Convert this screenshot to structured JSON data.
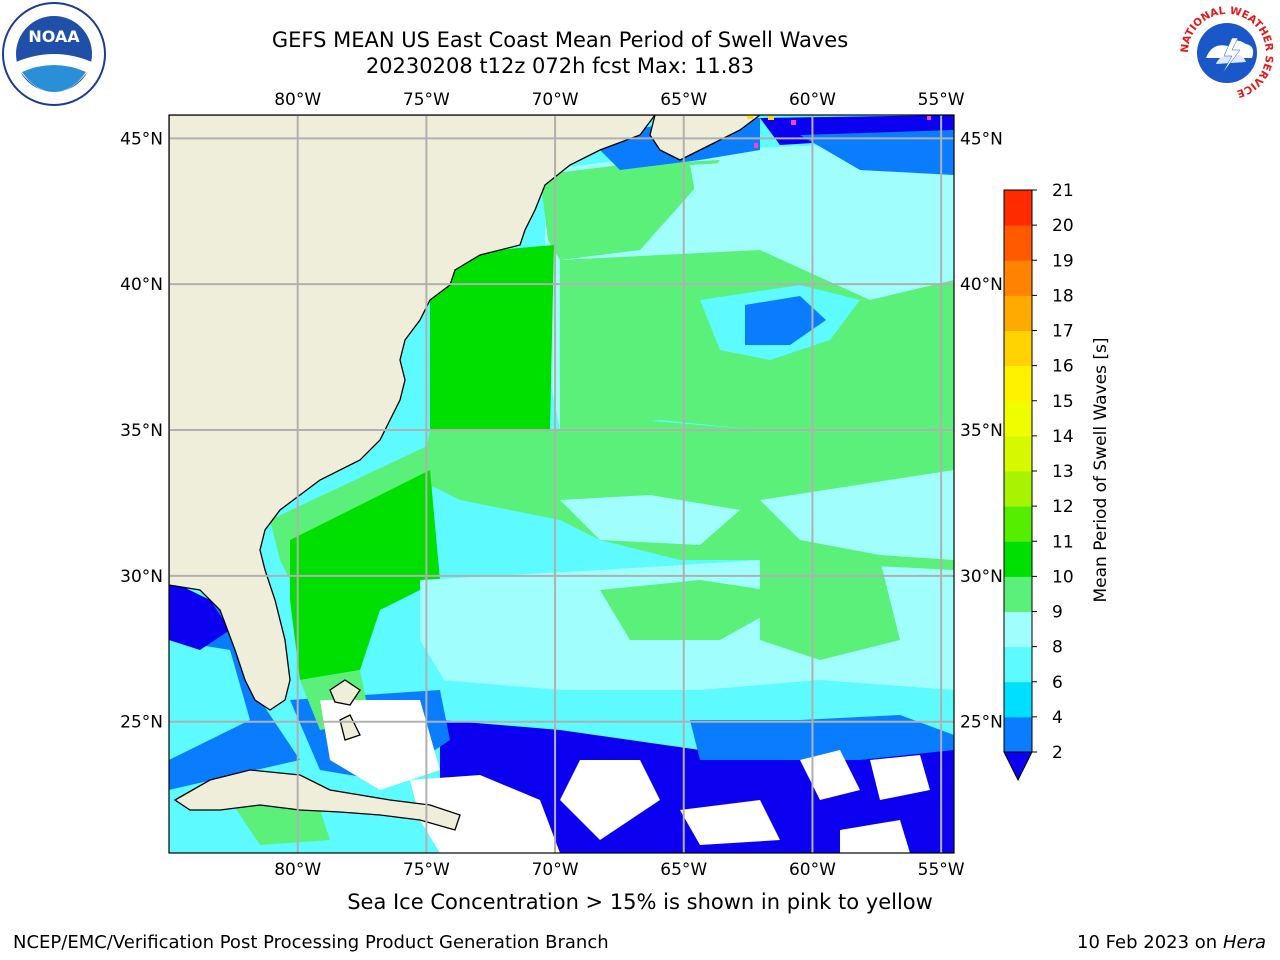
{
  "title": {
    "line1": "GEFS MEAN US East Coast Mean Period of Swell Waves",
    "line2": "20230208 t12z 072h fcst   Max: 11.83"
  },
  "logos": {
    "noaa": "NOAA",
    "nws_ring": "NATIONAL WEATHER SERVICE"
  },
  "map": {
    "lon_labels": [
      "80°W",
      "75°W",
      "70°W",
      "65°W",
      "60°W",
      "55°W"
    ],
    "lat_labels": [
      "45°N",
      "40°N",
      "35°N",
      "30°N",
      "25°N"
    ],
    "extent": {
      "lon": [
        -85,
        -54.5
      ],
      "lat": [
        20.5,
        45.8
      ]
    },
    "land_color": "#efeedb",
    "grid_color": "#b0b0b0"
  },
  "colorbar": {
    "label": "Mean Period of Swell Waves [s]",
    "ticks": [
      "2",
      "4",
      "6",
      "8",
      "9",
      "10",
      "11",
      "12",
      "13",
      "14",
      "15",
      "16",
      "17",
      "18",
      "19",
      "20",
      "21"
    ],
    "colors": [
      "#0a7dff",
      "#00dfff",
      "#5dfaff",
      "#a0fffd",
      "#5af07a",
      "#00e000",
      "#55ee00",
      "#a8f400",
      "#d6f800",
      "#f0fc00",
      "#fff200",
      "#ffd200",
      "#ffaa00",
      "#ff8200",
      "#ff5a00",
      "#ff2a00"
    ],
    "extend_color": "#0b00f0"
  },
  "note": "Sea Ice Concentration > 15% is shown in pink to yellow",
  "footer": {
    "left": "NCEP/EMC/Verification Post Processing Product Generation Branch",
    "date": "10 Feb 2023 on",
    "host": "Hera"
  }
}
